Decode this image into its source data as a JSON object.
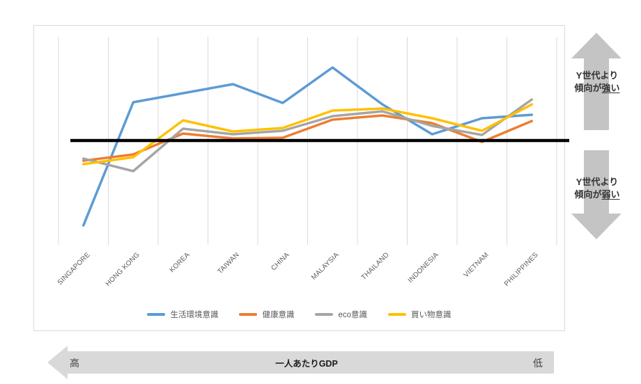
{
  "chart_data": {
    "type": "line",
    "title": "",
    "categories": [
      "SINGAPORE",
      "HONG KONG",
      "KOREA",
      "TAIWAN",
      "CHINA",
      "MALAYSIA",
      "THAILAND",
      "INDONESIA",
      "VIETNAM",
      "PHILIPPINES"
    ],
    "series": [
      {
        "name": "生活環境意識",
        "color": "#5B9BD5",
        "values": [
          -1.22,
          0.55,
          0.68,
          0.81,
          0.54,
          1.05,
          0.52,
          0.09,
          0.32,
          0.37
        ]
      },
      {
        "name": "健康意識",
        "color": "#ED7D31",
        "values": [
          -0.29,
          -0.2,
          0.1,
          0.03,
          0.04,
          0.3,
          0.36,
          0.25,
          -0.02,
          0.28
        ]
      },
      {
        "name": "eco意識",
        "color": "#A5A5A5",
        "values": [
          -0.26,
          -0.44,
          0.17,
          0.09,
          0.14,
          0.35,
          0.42,
          0.21,
          0.08,
          0.59
        ]
      },
      {
        "name": "買い物意識",
        "color": "#FFC000",
        "values": [
          -0.34,
          -0.24,
          0.29,
          0.13,
          0.18,
          0.43,
          0.46,
          0.32,
          0.14,
          0.52
        ]
      }
    ],
    "baseline": {
      "value": 0,
      "meaning": "Y世代水準",
      "color": "#000000"
    },
    "ylim": [
      -1.5,
      1.5
    ],
    "grid": "vertical-only",
    "grid_color": "#D9D9D9",
    "legend_position": "bottom"
  },
  "annotations": {
    "upper": {
      "line1": "Y世代より",
      "line2_prefix": "傾向が",
      "line2_emphasis": "強い"
    },
    "lower": {
      "line1": "Y世代より",
      "line2_prefix": "傾向が",
      "line2_emphasis": "弱い"
    },
    "arrow_color": "#C4C4C4"
  },
  "gdp_axis": {
    "high": "高",
    "label": "一人あたりGDP",
    "low": "低",
    "arrow_color": "#D9D9D9",
    "direction": "left"
  }
}
